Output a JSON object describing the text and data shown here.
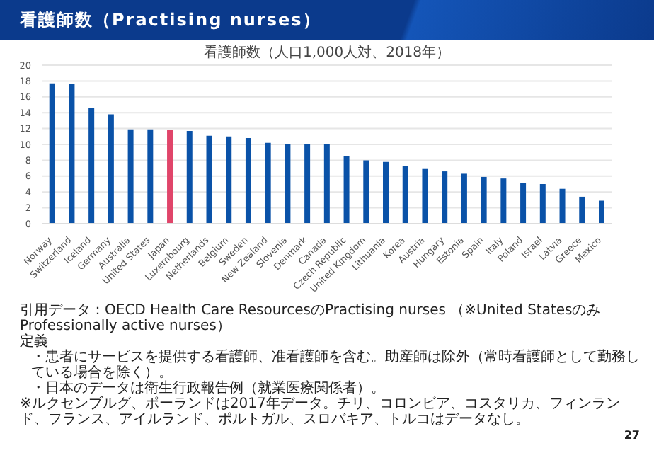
{
  "chart_data": {
    "type": "bar",
    "title": "看護師数（Practising nurses）",
    "subtitle": "看護師数（人口1,000人対、2018年）",
    "categories": [
      "Norway",
      "Switzerland",
      "Iceland",
      "Germany",
      "Australia",
      "United States",
      "Japan",
      "Luxembourg",
      "Netherlands",
      "Belgium",
      "Sweden",
      "New Zealand",
      "Slovenia",
      "Denmark",
      "Canada",
      "Czech Republic",
      "United Kingdom",
      "Lithuania",
      "Korea",
      "Austria",
      "Hungary",
      "Estonia",
      "Spain",
      "Italy",
      "Poland",
      "Israel",
      "Latvia",
      "Greece",
      "Mexico"
    ],
    "values": [
      17.7,
      17.6,
      14.6,
      13.8,
      11.9,
      11.9,
      11.8,
      11.7,
      11.1,
      11.0,
      10.8,
      10.2,
      10.1,
      10.1,
      10.0,
      8.5,
      8.0,
      7.8,
      7.3,
      6.9,
      6.6,
      6.3,
      5.9,
      5.7,
      5.1,
      5.0,
      4.4,
      3.4,
      2.9
    ],
    "colors": [
      "#0a52a8",
      "#0a52a8",
      "#0a52a8",
      "#0a52a8",
      "#0a52a8",
      "#0a52a8",
      "#e0456a",
      "#0a52a8",
      "#0a52a8",
      "#0a52a8",
      "#0a52a8",
      "#0a52a8",
      "#0a52a8",
      "#0a52a8",
      "#0a52a8",
      "#0a52a8",
      "#0a52a8",
      "#0a52a8",
      "#0a52a8",
      "#0a52a8",
      "#0a52a8",
      "#0a52a8",
      "#0a52a8",
      "#0a52a8",
      "#0a52a8",
      "#0a52a8",
      "#0a52a8",
      "#0a52a8",
      "#0a52a8"
    ],
    "ylim": [
      0,
      20
    ],
    "yticks": [
      0,
      2,
      4,
      6,
      8,
      10,
      12,
      14,
      16,
      18,
      20
    ],
    "grid": "y",
    "annotations": [
      "引用データ：OECD Health Care ResourcesのPractising nurses （※United StatesのみProfessionally active nurses）",
      "定義",
      "・患者にサービスを提供する看護師、准看護師を含む。助産師は除外（常時看護師として勤務している場合を除く）。",
      "・日本のデータは衛生行政報告例（就業医療関係者）。",
      "※ルクセンブルグ、ポーランドは2017年データ。チリ、コロンビア、コスタリカ、フィンランド、フランス、アイルランド、ポルトガル、スロバキア、トルコはデータなし。",
      "27"
    ]
  }
}
